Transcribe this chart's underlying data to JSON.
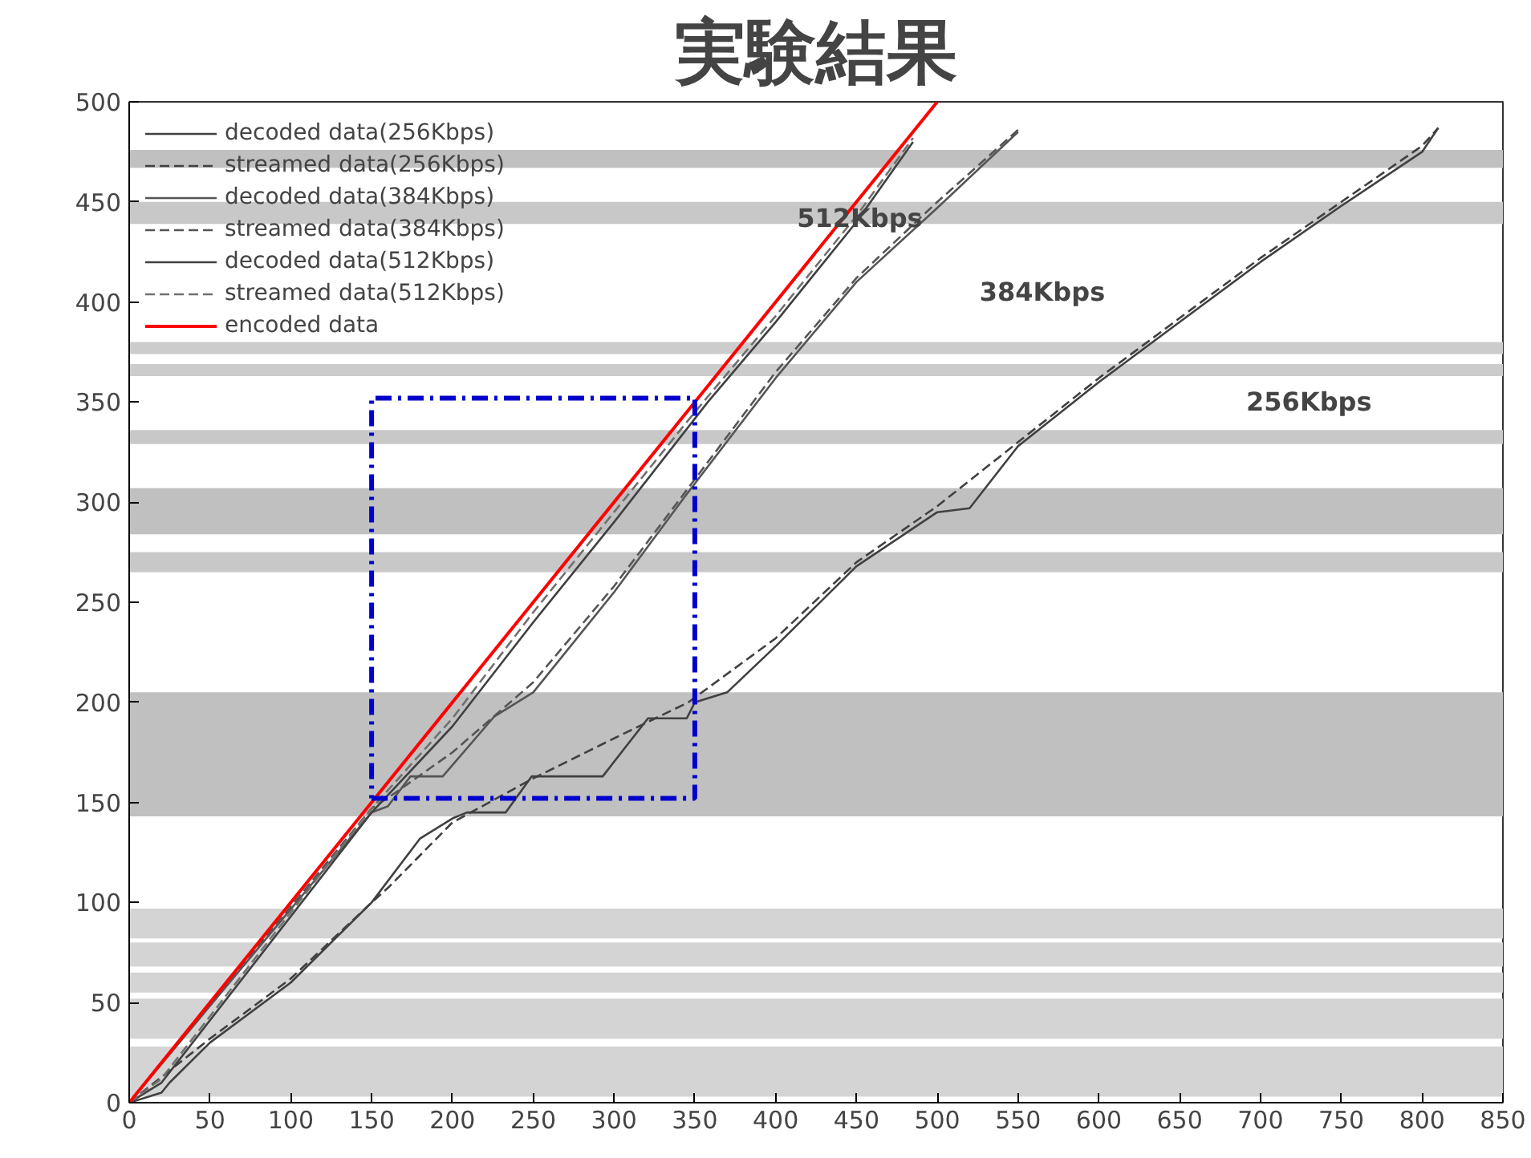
{
  "chart_data": {
    "type": "line",
    "title": "実験結果",
    "xlim": [
      0,
      850
    ],
    "xticks": [
      0,
      50,
      100,
      150,
      200,
      250,
      300,
      350,
      400,
      450,
      500,
      550,
      600,
      650,
      700,
      750,
      800,
      850
    ],
    "ylim": [
      0,
      500
    ],
    "yticks": [
      0,
      50,
      100,
      150,
      200,
      250,
      300,
      350,
      400,
      450,
      500
    ],
    "grid": false,
    "legend": "top left",
    "series": [
      {
        "name": "decoded data(256Kbps)",
        "color": "#404040",
        "line_style": "solid",
        "x": [
          0,
          20,
          25,
          50,
          100,
          150,
          180,
          200,
          209,
          233,
          249,
          293,
          321,
          345,
          350,
          370,
          400,
          450,
          500,
          520,
          550,
          600,
          650,
          700,
          750,
          800,
          810
        ],
        "values": [
          0,
          5,
          10,
          30,
          60,
          100,
          132,
          142,
          145,
          145,
          163,
          163,
          192,
          192,
          200,
          205,
          228,
          268,
          295,
          297,
          328,
          360,
          390,
          420,
          448,
          475,
          487
        ]
      },
      {
        "name": "streamed data(256Kbps)",
        "color": "#404040",
        "line_style": "dashed",
        "x": [
          0,
          50,
          100,
          150,
          161,
          200,
          250,
          300,
          346,
          400,
          450,
          500,
          550,
          600,
          650,
          700,
          750,
          800,
          810
        ],
        "values": [
          0,
          32,
          62,
          100,
          108,
          140,
          162,
          182,
          200,
          232,
          270,
          298,
          330,
          362,
          392,
          422,
          450,
          478,
          487
        ]
      },
      {
        "name": "decoded data(384Kbps)",
        "color": "#555555",
        "line_style": "solid",
        "x": [
          0,
          150,
          160,
          174,
          194,
          226,
          250,
          300,
          344,
          400,
          450,
          500,
          550
        ],
        "values": [
          0,
          145,
          148,
          163,
          163,
          193,
          205,
          255,
          303,
          362,
          410,
          447,
          485
        ]
      },
      {
        "name": "streamed data(384Kbps)",
        "color": "#555555",
        "line_style": "dashed",
        "x": [
          0,
          150,
          165,
          200,
          250,
          300,
          344,
          400,
          450,
          500,
          550
        ],
        "values": [
          0,
          147,
          155,
          175,
          210,
          258,
          305,
          365,
          412,
          450,
          486
        ]
      },
      {
        "name": "decoded data(512Kbps)",
        "color": "#404040",
        "line_style": "solid",
        "x": [
          0,
          20,
          150,
          200,
          250,
          300,
          358,
          400,
          450,
          485
        ],
        "values": [
          0,
          10,
          145,
          188,
          240,
          290,
          350,
          390,
          440,
          480
        ]
      },
      {
        "name": "streamed data(512Kbps)",
        "color": "#707070",
        "line_style": "dashed",
        "x": [
          0,
          20,
          150,
          200,
          250,
          300,
          350,
          400,
          450,
          485
        ],
        "values": [
          0,
          12,
          147,
          192,
          245,
          295,
          345,
          393,
          443,
          482
        ]
      },
      {
        "name": "encoded data",
        "color": "#ff0000",
        "line_style": "solid",
        "x": [
          0,
          500
        ],
        "values": [
          0,
          500
        ]
      }
    ],
    "bands": [
      {
        "axis": "y",
        "from": 3,
        "to": 28,
        "color": "#d4d4d4"
      },
      {
        "axis": "y",
        "from": 32,
        "to": 52,
        "color": "#d4d4d4"
      },
      {
        "axis": "y",
        "from": 55,
        "to": 65,
        "color": "#d4d4d4"
      },
      {
        "axis": "y",
        "from": 68,
        "to": 80,
        "color": "#d4d4d4"
      },
      {
        "axis": "y",
        "from": 82,
        "to": 97,
        "color": "#d4d4d4"
      },
      {
        "axis": "y",
        "from": 143,
        "to": 205,
        "color": "#c0c0c0"
      },
      {
        "axis": "y",
        "from": 265,
        "to": 275,
        "color": "#c8c8c8"
      },
      {
        "axis": "y",
        "from": 284,
        "to": 307,
        "color": "#c0c0c0"
      },
      {
        "axis": "y",
        "from": 329,
        "to": 336,
        "color": "#c8c8c8"
      },
      {
        "axis": "y",
        "from": 363,
        "to": 369,
        "color": "#cccccc"
      },
      {
        "axis": "y",
        "from": 374,
        "to": 380,
        "color": "#cccccc"
      },
      {
        "axis": "y",
        "from": 439,
        "to": 450,
        "color": "#c8c8c8"
      },
      {
        "axis": "y",
        "from": 467,
        "to": 476,
        "color": "#c0c0c0"
      }
    ],
    "annotations": [
      "512Kbps",
      "384Kbps",
      "256Kbps"
    ]
  }
}
